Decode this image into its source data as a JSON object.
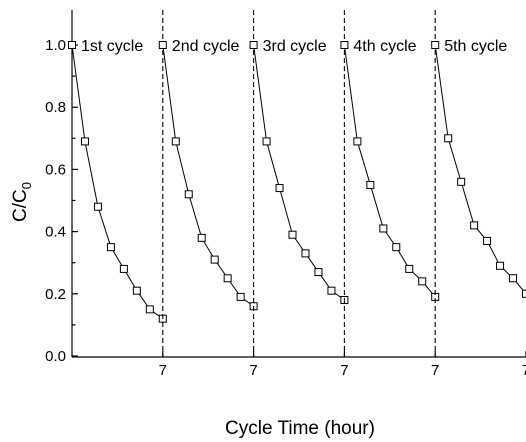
{
  "chart_data": {
    "type": "line",
    "ylabel_main": "C/C",
    "ylabel_sub": "0",
    "xlabel": "Cycle Time (hour)",
    "xlim": [
      0,
      35
    ],
    "ylim": [
      0,
      1.05
    ],
    "y_ticks": [
      "0.0",
      "0.2",
      "0.4",
      "0.6",
      "0.8",
      "1.0"
    ],
    "x_tick_label": "7",
    "cycle_length": 7,
    "series": [
      {
        "label": "1st cycle",
        "t": [
          0,
          1,
          2,
          3,
          4,
          5,
          6,
          7
        ],
        "values": [
          1.0,
          0.69,
          0.48,
          0.35,
          0.28,
          0.21,
          0.15,
          0.12
        ]
      },
      {
        "label": "2nd cycle",
        "t": [
          0,
          1,
          2,
          3,
          4,
          5,
          6,
          7
        ],
        "values": [
          1.0,
          0.69,
          0.52,
          0.38,
          0.31,
          0.25,
          0.19,
          0.16
        ]
      },
      {
        "label": "3rd cycle",
        "t": [
          0,
          1,
          2,
          3,
          4,
          5,
          6,
          7
        ],
        "values": [
          1.0,
          0.69,
          0.54,
          0.39,
          0.33,
          0.27,
          0.21,
          0.18
        ]
      },
      {
        "label": "4th cycle",
        "t": [
          0,
          1,
          2,
          3,
          4,
          5,
          6,
          7
        ],
        "values": [
          1.0,
          0.69,
          0.55,
          0.41,
          0.35,
          0.28,
          0.24,
          0.19
        ]
      },
      {
        "label": "5th cycle",
        "t": [
          0,
          1,
          2,
          3,
          4,
          5,
          6,
          7
        ],
        "values": [
          1.0,
          0.7,
          0.56,
          0.42,
          0.37,
          0.29,
          0.25,
          0.2
        ]
      }
    ]
  }
}
